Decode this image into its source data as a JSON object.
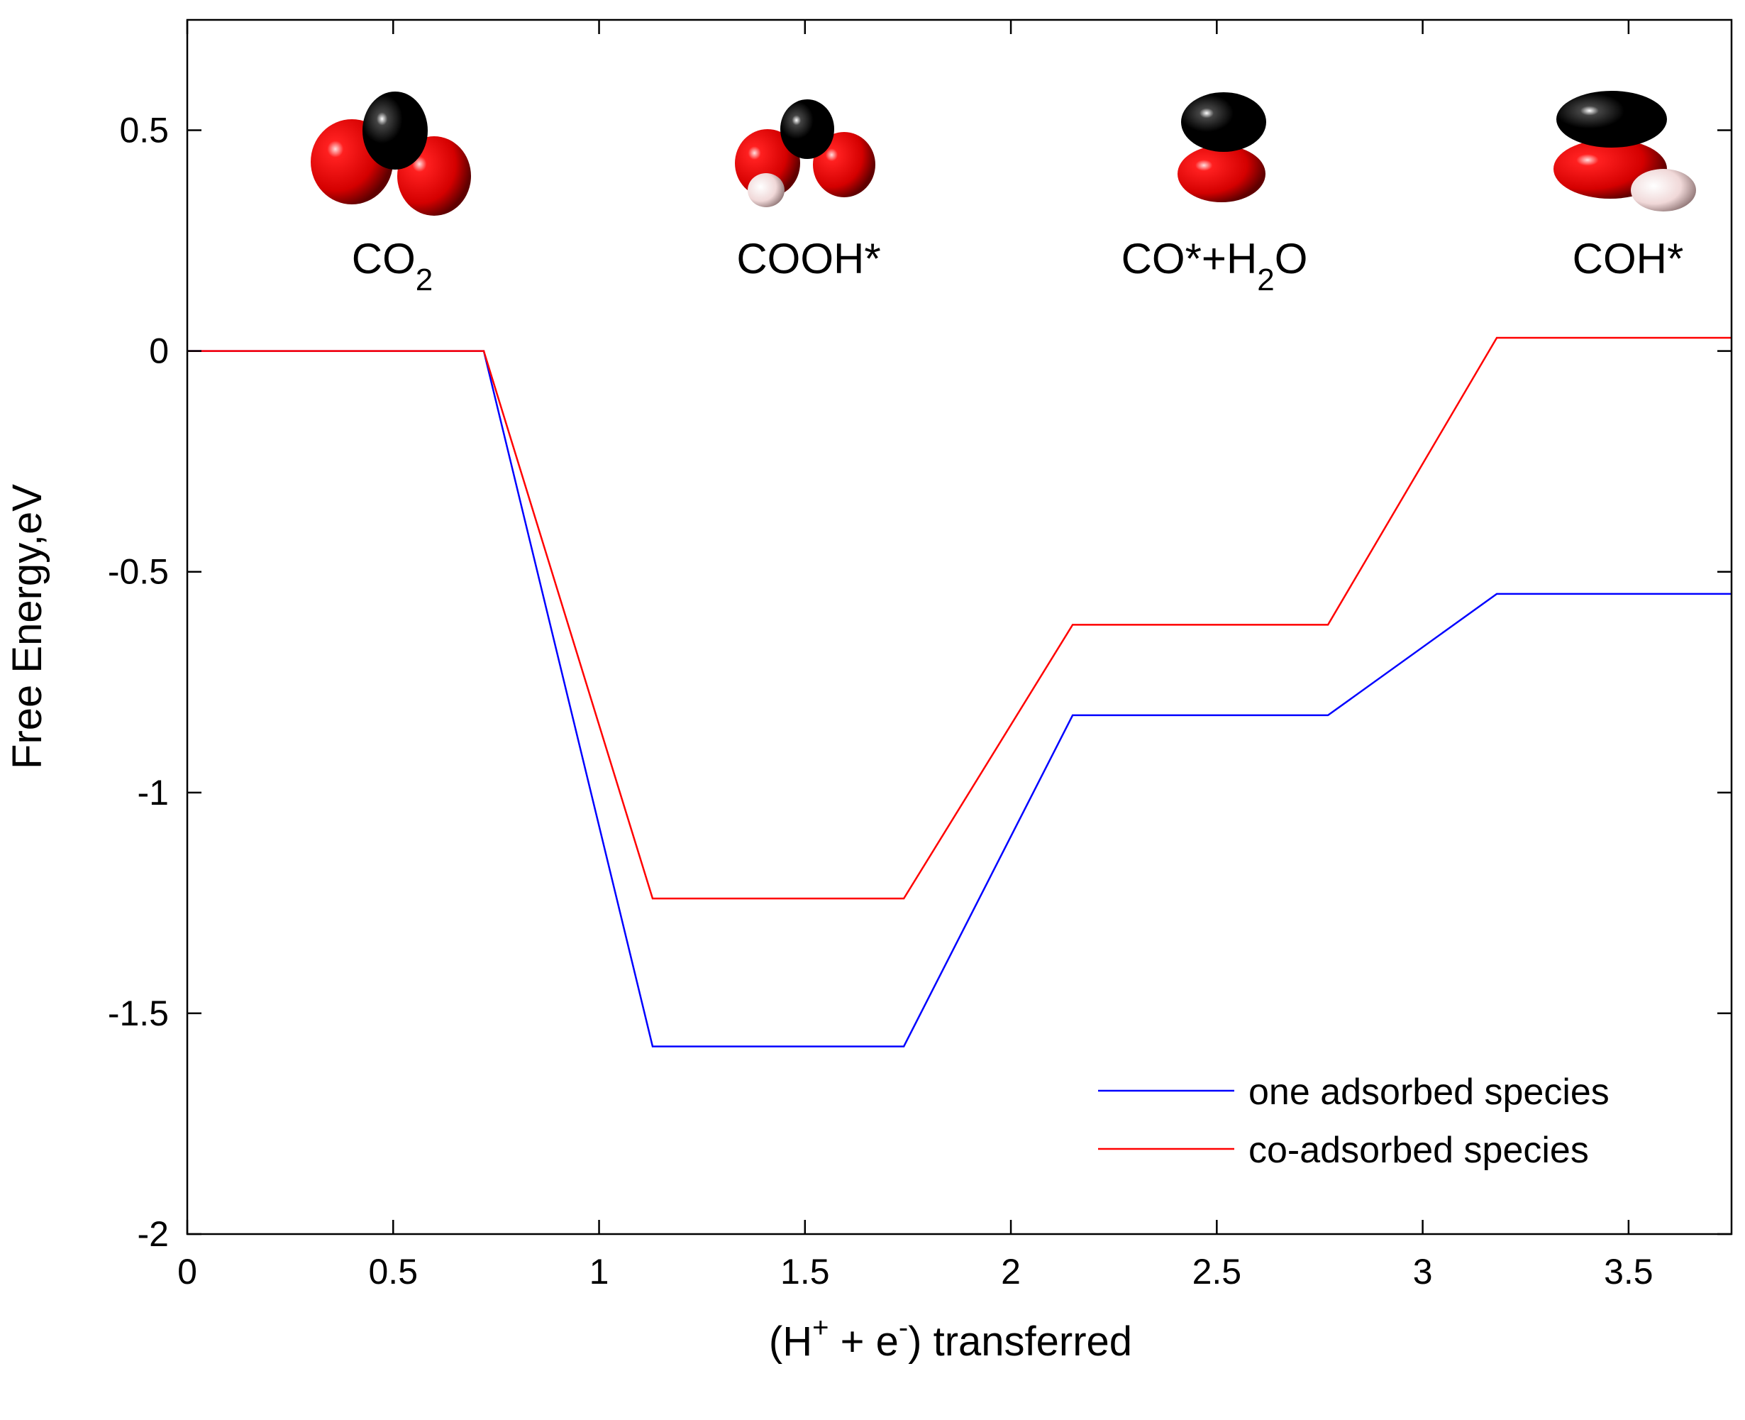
{
  "chart_data": {
    "type": "line",
    "title": "",
    "xlabel": "(H+ + e-) transferred",
    "ylabel": "Free Energy,eV",
    "xlim": [
      0,
      3.75
    ],
    "ylim": [
      -2,
      0.75
    ],
    "xticks": [
      "0",
      "0.5",
      "1",
      "1.5",
      "2",
      "2.5",
      "3",
      "3.5"
    ],
    "yticks": [
      "-2",
      "-1.5",
      "-1",
      "-0.5",
      "0",
      "0.5"
    ],
    "grid": false,
    "legend_position": "bottom-right",
    "series": [
      {
        "name": "one adsorbed species",
        "color": "#0000ff",
        "x": [
          0,
          0.72,
          1.13,
          1.74,
          2.15,
          2.77,
          3.18,
          3.75
        ],
        "y": [
          0,
          0,
          -1.575,
          -1.575,
          -0.825,
          -0.825,
          -0.55,
          -0.55
        ]
      },
      {
        "name": "co-adsorbed species",
        "color": "#ff0000",
        "x": [
          0,
          0.72,
          1.13,
          1.74,
          2.15,
          2.77,
          3.18,
          3.75
        ],
        "y": [
          0,
          0,
          -1.24,
          -1.24,
          -0.62,
          -0.62,
          0.03,
          0.03
        ]
      }
    ],
    "annotations": [
      {
        "label": "CO2",
        "x": 0.5
      },
      {
        "label": "COOH*",
        "x": 1.5
      },
      {
        "label": "CO*+H2O",
        "x": 2.5
      },
      {
        "label": "COH*",
        "x": 3.5
      }
    ],
    "colors": {
      "carbon": "#000000",
      "oxygen": "#e00000",
      "hydrogen": "#f2dede"
    }
  }
}
